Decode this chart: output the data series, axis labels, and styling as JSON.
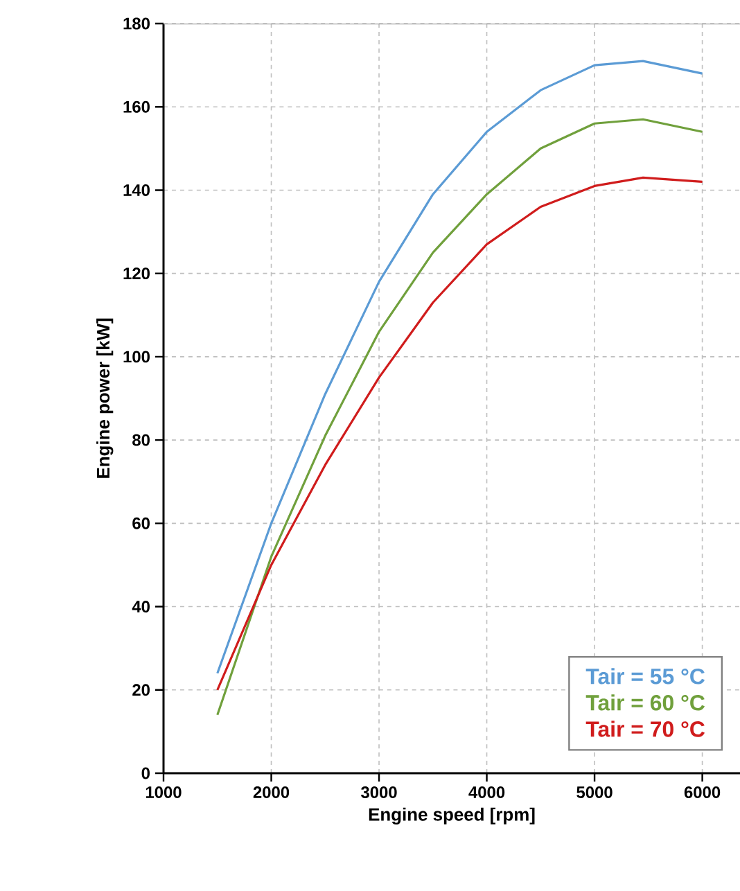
{
  "chart_data": {
    "type": "line",
    "xlabel": "Engine speed [rpm]",
    "ylabel": "Engine power [kW]",
    "xlim": [
      1000,
      6350
    ],
    "xticks": [
      1000,
      2000,
      3000,
      4000,
      5000,
      6000
    ],
    "ylim": [
      0,
      180
    ],
    "yticks": [
      0,
      20,
      40,
      60,
      80,
      100,
      120,
      140,
      160,
      180
    ],
    "grid": true,
    "legend": "bottom right",
    "marker": "none",
    "line_style": "solid",
    "x": [
      1500,
      2000,
      2500,
      3000,
      3500,
      4000,
      4500,
      5000,
      5450,
      6000
    ],
    "series": [
      {
        "name": "Tair = 55 °C",
        "color": "#5b9bd5",
        "values": [
          24,
          60,
          91,
          118,
          139,
          154,
          164,
          170,
          171,
          168
        ]
      },
      {
        "name": "Tair = 60 °C",
        "color": "#70a03c",
        "values": [
          14,
          52,
          81,
          106,
          125,
          139,
          150,
          156,
          157,
          154
        ]
      },
      {
        "name": "Tair = 70 °C",
        "color": "#d01c1c",
        "values": [
          20,
          50,
          74,
          95,
          113,
          127,
          136,
          141,
          143,
          142
        ]
      }
    ]
  }
}
